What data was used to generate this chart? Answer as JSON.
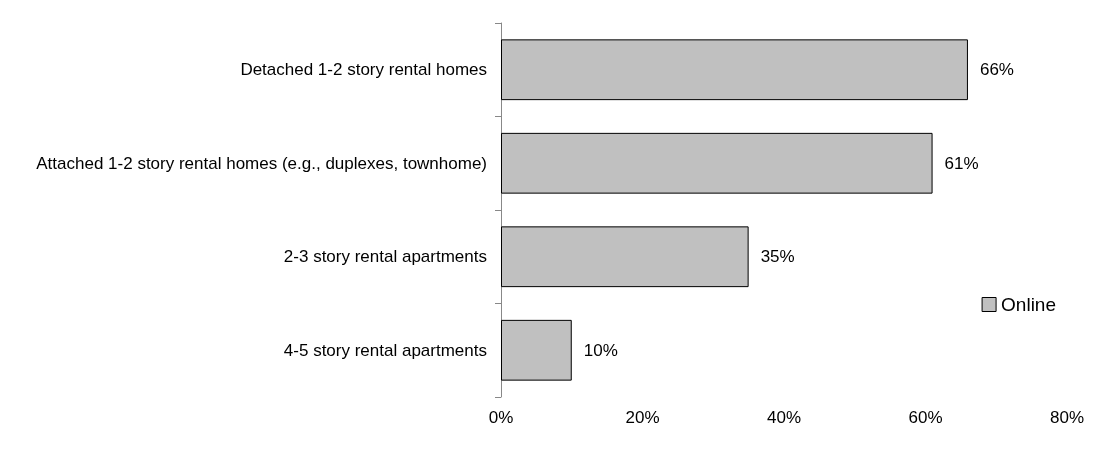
{
  "chart_data": {
    "type": "bar",
    "orientation": "horizontal",
    "categories": [
      "Detached 1-2 story rental homes",
      "Attached 1-2 story rental homes (e.g., duplexes, townhome)",
      "2-3 story rental apartments",
      "4-5 story rental apartments"
    ],
    "series": [
      {
        "name": "Online",
        "color": "#c0c0c0",
        "values": [
          66,
          61,
          35,
          10
        ],
        "value_labels": [
          "66%",
          "61%",
          "35%",
          "10%"
        ]
      }
    ],
    "xlim": [
      0,
      80
    ],
    "xticks": [
      {
        "value": 0,
        "label": "0%"
      },
      {
        "value": 20,
        "label": "20%"
      },
      {
        "value": 40,
        "label": "40%"
      },
      {
        "value": 60,
        "label": "60%"
      },
      {
        "value": 80,
        "label": "80%"
      }
    ],
    "grid": false,
    "legend": "right"
  }
}
